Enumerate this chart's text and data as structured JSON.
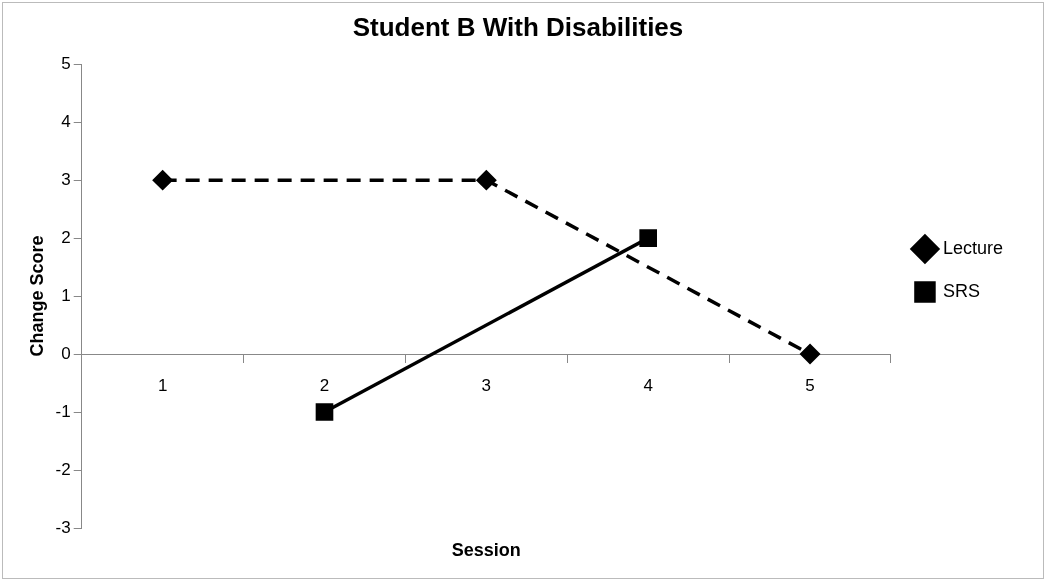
{
  "chart_data": {
    "type": "line",
    "title": "Student B With Disabilities",
    "xlabel": "Session",
    "ylabel": "Change Score",
    "categories": [
      "1",
      "2",
      "3",
      "4",
      "5"
    ],
    "series": [
      {
        "name": "Lecture",
        "color": "#000000",
        "values": [
          3,
          null,
          3,
          null,
          0
        ],
        "marker": "diamond",
        "line_style": "dashed"
      },
      {
        "name": "SRS",
        "color": "#000000",
        "values": [
          null,
          -1,
          null,
          2,
          null
        ],
        "marker": "square",
        "line_style": "solid"
      }
    ],
    "ylim": [
      -3,
      5
    ],
    "yticks": [
      -3,
      -2,
      -1,
      0,
      1,
      2,
      3,
      4,
      5
    ],
    "grid": false,
    "legend": "right"
  }
}
